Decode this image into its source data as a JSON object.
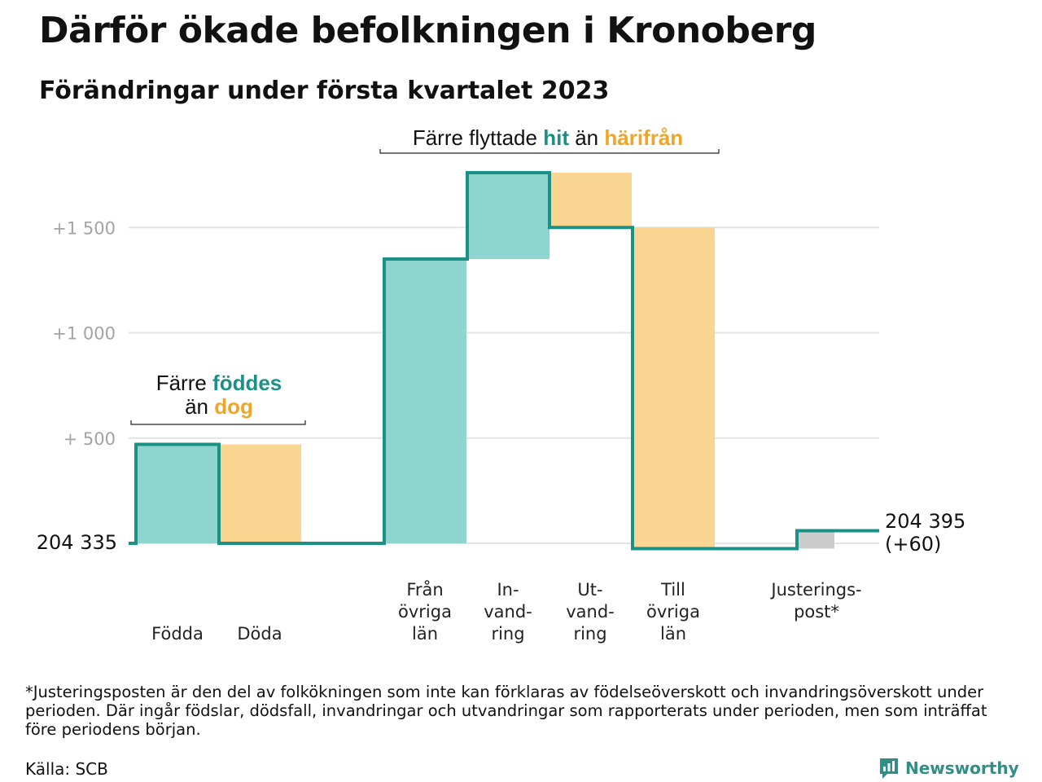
{
  "title": "Därför ökade befolkningen i Kronoberg",
  "subtitle": "Förändringar under första kvartalet 2023",
  "colors": {
    "increase": "#8dd5ce",
    "decrease": "#fad592",
    "adjustment": "#cccccc",
    "line": "#1a9086",
    "hit": "#1a9086",
    "harifran": "#f0a526"
  },
  "chart_data": {
    "type": "waterfall",
    "start": {
      "value": 204335,
      "label": "204 335"
    },
    "end": {
      "value": 204395,
      "label_line1": "204 395",
      "label_line2": "(+60)"
    },
    "yticks": [
      {
        "value": 500,
        "label": "+ 500"
      },
      {
        "value": 1000,
        "label": "+1 000"
      },
      {
        "value": 1500,
        "label": "+1 500"
      }
    ],
    "ylim": [
      -30,
      1800
    ],
    "steps": [
      {
        "name": "Födda",
        "label_lines": [
          "Födda"
        ],
        "change": 470,
        "kind": "increase",
        "label_row": "low"
      },
      {
        "name": "Döda",
        "label_lines": [
          "Döda"
        ],
        "change": -470,
        "kind": "decrease",
        "label_row": "low"
      },
      {
        "name": "Från övriga län",
        "label_lines": [
          "Från",
          "övriga",
          "län"
        ],
        "change": 1350,
        "kind": "increase",
        "label_row": "high"
      },
      {
        "name": "Invandring",
        "label_lines": [
          "In-",
          "vand-",
          "ring"
        ],
        "change": 410,
        "kind": "increase",
        "label_row": "high"
      },
      {
        "name": "Utvandring",
        "label_lines": [
          "Ut-",
          "vand-",
          "ring"
        ],
        "change": -260,
        "kind": "decrease",
        "label_row": "high"
      },
      {
        "name": "Till övriga län",
        "label_lines": [
          "Till",
          "övriga",
          "län"
        ],
        "change": -1525,
        "kind": "decrease",
        "label_row": "high"
      },
      {
        "name": "Justeringspost",
        "label_lines": [
          "Justerings-",
          "post*"
        ],
        "change": 85,
        "kind": "adjustment",
        "label_row": "high"
      }
    ],
    "annotations": [
      {
        "name": "birth-death-annotation",
        "line1": [
          "Färre ",
          "föddes"
        ],
        "line2": [
          "än ",
          "dog"
        ]
      },
      {
        "name": "migration-annotation",
        "line1": [
          "Färre flyttade ",
          "hit",
          " än ",
          "härifrån"
        ]
      }
    ]
  },
  "footnote": "*Justeringsposten är den del av folkökningen som inte kan förklaras av födelseöverskott och invandringsöverskott under perioden. Där ingår födslar, dödsfall, invandringar och utvandringar som rapporterats under perioden, men som inträffat före periodens början.",
  "source": "Källa: SCB",
  "brand": {
    "name": "Newsworthy",
    "icon": "bar-chart-bubble-icon"
  }
}
